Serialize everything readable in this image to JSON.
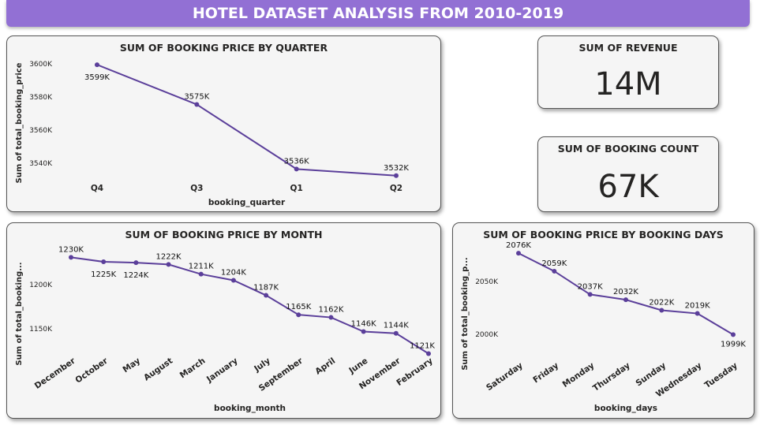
{
  "header": {
    "title": "HOTEL DATASET ANALYSIS FROM 2010-2019"
  },
  "kpis": [
    {
      "title": "SUM OF REVENUE",
      "value": "14M"
    },
    {
      "title": "SUM OF BOOKING COUNT",
      "value": "67K"
    }
  ],
  "colors": {
    "line": "#5b3f9a",
    "header": "#9270d4"
  },
  "chart_data": [
    {
      "type": "line",
      "title": "SUM OF BOOKING PRICE BY QUARTER",
      "xlabel": "booking_quarter",
      "ylabel": "Sum of total_booking_price",
      "categories": [
        "Q4",
        "Q3",
        "Q1",
        "Q2"
      ],
      "values": [
        3599,
        3575,
        3536,
        3532
      ],
      "data_labels": [
        "3599K",
        "3575K",
        "3536K",
        "3532K"
      ],
      "yticks": [
        3600,
        3580,
        3560,
        3540
      ],
      "ytick_labels": [
        "3600K",
        "3580K",
        "3560K",
        "3540K"
      ],
      "unit": "K",
      "grid": false
    },
    {
      "type": "line",
      "title": "SUM OF BOOKING PRICE BY MONTH",
      "xlabel": "booking_month",
      "ylabel": "Sum of total_booking...",
      "categories": [
        "December",
        "October",
        "May",
        "August",
        "March",
        "January",
        "July",
        "September",
        "April",
        "June",
        "November",
        "February"
      ],
      "values": [
        1230,
        1225,
        1224,
        1222,
        1211,
        1204,
        1187,
        1165,
        1162,
        1146,
        1144,
        1121
      ],
      "data_labels": [
        "1230K",
        "1225K",
        "1224K",
        "1222K",
        "1211K",
        "1204K",
        "1187K",
        "1165K",
        "1162K",
        "1146K",
        "1144K",
        "1121K"
      ],
      "yticks": [
        1200,
        1150
      ],
      "ytick_labels": [
        "1200K",
        "1150K"
      ],
      "unit": "K",
      "grid": false
    },
    {
      "type": "line",
      "title": "SUM OF BOOKING PRICE BY BOOKING DAYS",
      "xlabel": "booking_days",
      "ylabel": "Sum of total_booking_p...",
      "categories": [
        "Saturday",
        "Friday",
        "Monday",
        "Thursday",
        "Sunday",
        "Wednesday",
        "Tuesday"
      ],
      "values": [
        2076,
        2059,
        2037,
        2032,
        2022,
        2019,
        1999
      ],
      "data_labels": [
        "2076K",
        "2059K",
        "2037K",
        "2032K",
        "2022K",
        "2019K",
        "1999K"
      ],
      "yticks": [
        2050,
        2000
      ],
      "ytick_labels": [
        "2050K",
        "2000K"
      ],
      "unit": "K",
      "grid": false
    }
  ]
}
